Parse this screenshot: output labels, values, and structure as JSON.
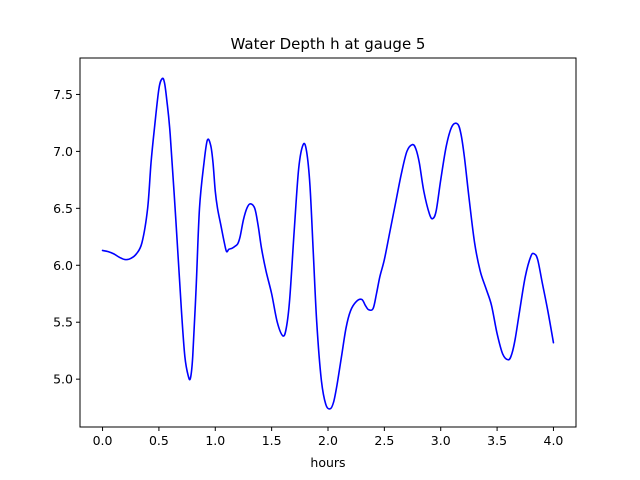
{
  "chart_data": {
    "type": "line",
    "title": "Water Depth h at gauge 5",
    "xlabel": "hours",
    "ylabel": "",
    "xlim": [
      -0.2,
      4.2
    ],
    "ylim": [
      4.58,
      7.82
    ],
    "xticks": [
      0.0,
      0.5,
      1.0,
      1.5,
      2.0,
      2.5,
      3.0,
      3.5,
      4.0
    ],
    "xtick_labels": [
      "0.0",
      "0.5",
      "1.0",
      "1.5",
      "2.0",
      "2.5",
      "3.0",
      "3.5",
      "4.0"
    ],
    "yticks": [
      5.0,
      5.5,
      6.0,
      6.5,
      7.0,
      7.5
    ],
    "ytick_labels": [
      "5.0",
      "5.5",
      "6.0",
      "6.5",
      "7.0",
      "7.5"
    ],
    "grid": false,
    "legend": "none",
    "series": [
      {
        "color": "#0000ff",
        "x": [
          0.0,
          0.05,
          0.1,
          0.15,
          0.2,
          0.25,
          0.3,
          0.35,
          0.4,
          0.43,
          0.46,
          0.5,
          0.53,
          0.55,
          0.57,
          0.6,
          0.65,
          0.7,
          0.73,
          0.76,
          0.78,
          0.8,
          0.83,
          0.86,
          0.9,
          0.93,
          0.96,
          0.98,
          1.0,
          1.02,
          1.05,
          1.08,
          1.1,
          1.12,
          1.15,
          1.18,
          1.2,
          1.22,
          1.25,
          1.28,
          1.31,
          1.35,
          1.38,
          1.41,
          1.45,
          1.5,
          1.55,
          1.6,
          1.63,
          1.66,
          1.7,
          1.74,
          1.78,
          1.81,
          1.84,
          1.87,
          1.9,
          1.94,
          1.98,
          2.02,
          2.05,
          2.08,
          2.12,
          2.16,
          2.2,
          2.25,
          2.3,
          2.33,
          2.36,
          2.4,
          2.43,
          2.46,
          2.5,
          2.55,
          2.6,
          2.65,
          2.7,
          2.75,
          2.78,
          2.81,
          2.85,
          2.9,
          2.93,
          2.96,
          3.0,
          3.05,
          3.1,
          3.15,
          3.18,
          3.21,
          3.25,
          3.3,
          3.35,
          3.4,
          3.45,
          3.5,
          3.55,
          3.6,
          3.63,
          3.66,
          3.7,
          3.75,
          3.8,
          3.83,
          3.86,
          3.9,
          3.95,
          4.0
        ],
        "y": [
          6.13,
          6.12,
          6.1,
          6.07,
          6.05,
          6.06,
          6.1,
          6.2,
          6.5,
          6.9,
          7.2,
          7.55,
          7.64,
          7.6,
          7.45,
          7.15,
          6.4,
          5.6,
          5.2,
          5.03,
          5.01,
          5.2,
          5.8,
          6.5,
          6.9,
          7.1,
          7.05,
          6.9,
          6.65,
          6.5,
          6.35,
          6.2,
          6.12,
          6.14,
          6.15,
          6.17,
          6.19,
          6.25,
          6.4,
          6.5,
          6.54,
          6.5,
          6.35,
          6.15,
          5.95,
          5.75,
          5.5,
          5.38,
          5.45,
          5.7,
          6.3,
          6.85,
          7.06,
          7.0,
          6.7,
          6.1,
          5.5,
          5.0,
          4.78,
          4.74,
          4.8,
          4.95,
          5.2,
          5.45,
          5.6,
          5.68,
          5.7,
          5.65,
          5.61,
          5.62,
          5.75,
          5.9,
          6.05,
          6.3,
          6.55,
          6.8,
          7.0,
          7.06,
          7.02,
          6.9,
          6.65,
          6.45,
          6.41,
          6.48,
          6.75,
          7.05,
          7.22,
          7.24,
          7.15,
          6.95,
          6.6,
          6.2,
          5.95,
          5.8,
          5.65,
          5.4,
          5.22,
          5.17,
          5.22,
          5.35,
          5.6,
          5.9,
          6.08,
          6.1,
          6.05,
          5.85,
          5.6,
          5.32
        ]
      }
    ]
  }
}
